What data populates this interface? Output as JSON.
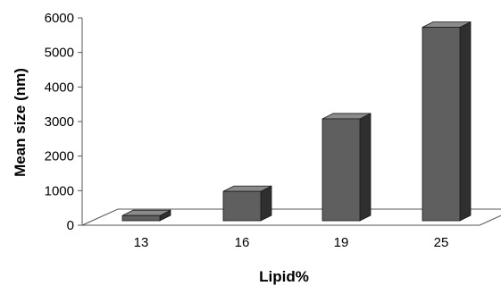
{
  "chart_data": {
    "type": "bar",
    "categories": [
      "13",
      "16",
      "19",
      "25"
    ],
    "values": [
      150,
      850,
      2950,
      5600
    ],
    "xlabel": "Lipid%",
    "ylabel": "Mean size (nm)",
    "ylim": [
      0,
      6000
    ],
    "yticks": [
      0,
      1000,
      2000,
      3000,
      4000,
      5000,
      6000
    ],
    "grid": false,
    "legend": "none",
    "colors": {
      "bar_front": "#5f5f5f",
      "bar_top": "#8a8a8a",
      "bar_side": "#2f2f2f",
      "floor": "#ffffff",
      "axis": "#555555"
    }
  }
}
